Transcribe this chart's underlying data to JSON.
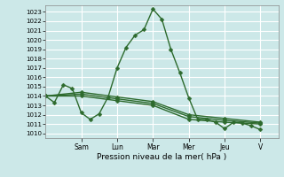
{
  "xlabel": "Pression niveau de la mer( hPa )",
  "bg_color": "#cce8e8",
  "grid_color": "#ffffff",
  "line_color": "#2d6a2d",
  "ylim": [
    1009.5,
    1023.7
  ],
  "yticks": [
    1010,
    1011,
    1012,
    1013,
    1014,
    1015,
    1016,
    1017,
    1018,
    1019,
    1020,
    1021,
    1022,
    1023
  ],
  "day_labels": [
    "Sam",
    "Lun",
    "Mar",
    "Mer",
    "Jeu",
    "V"
  ],
  "day_positions": [
    24,
    48,
    72,
    96,
    120,
    144
  ],
  "xlim": [
    0,
    156
  ],
  "series": [
    {
      "x": [
        0,
        6,
        12,
        18,
        24,
        30,
        36,
        42,
        48,
        54,
        60,
        66,
        72,
        78,
        84,
        90,
        96,
        102,
        108,
        114,
        120,
        126,
        132,
        138,
        144
      ],
      "y": [
        1014.0,
        1013.3,
        1015.2,
        1014.8,
        1012.2,
        1011.5,
        1012.1,
        1013.9,
        1017.0,
        1019.2,
        1020.5,
        1021.1,
        1023.3,
        1022.2,
        1019.0,
        1016.5,
        1013.8,
        1011.5,
        1011.5,
        1011.2,
        1010.5,
        1011.2,
        1011.1,
        1010.8,
        1010.4
      ]
    },
    {
      "x": [
        0,
        24,
        48,
        72,
        96,
        120,
        144
      ],
      "y": [
        1014.0,
        1014.0,
        1013.5,
        1013.0,
        1011.5,
        1011.2,
        1011.0
      ]
    },
    {
      "x": [
        0,
        24,
        48,
        72,
        96,
        120,
        144
      ],
      "y": [
        1014.0,
        1014.2,
        1013.7,
        1013.2,
        1011.8,
        1011.4,
        1011.1
      ]
    },
    {
      "x": [
        0,
        24,
        48,
        72,
        96,
        120,
        144
      ],
      "y": [
        1014.0,
        1014.4,
        1013.9,
        1013.4,
        1012.0,
        1011.6,
        1011.2
      ]
    }
  ],
  "marker": "D",
  "markersize": 2.5,
  "linewidth": 1.0
}
